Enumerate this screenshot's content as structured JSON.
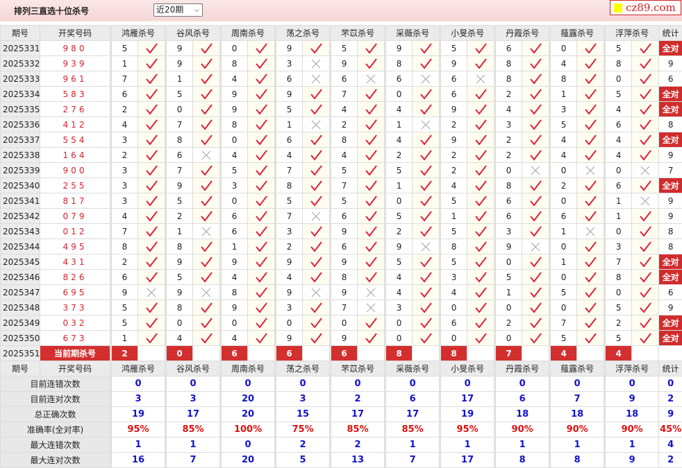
{
  "header": {
    "title": "排列三直选十位杀号",
    "period_select": "近20期",
    "logo": "cz89.com"
  },
  "columns": {
    "issue": "期号",
    "draw": "开奖号码",
    "predictors": [
      "鸿雁杀号",
      "谷风杀号",
      "周南杀号",
      "荡之杀号",
      "芣苡杀号",
      "采薇杀号",
      "小旻杀号",
      "丹霞杀号",
      "薤露杀号",
      "浮萍杀号"
    ],
    "stat": "统计"
  },
  "colors": {
    "accent": "#d42f2f",
    "check": "#e0203a",
    "cross": "#aaaaaa",
    "stat_blue": "#1212d0"
  },
  "rows": [
    {
      "issue": "2025331",
      "draw": "980",
      "nums": [
        5,
        9,
        0,
        9,
        5,
        9,
        5,
        6,
        0,
        5
      ],
      "ok": [
        1,
        1,
        1,
        1,
        1,
        1,
        1,
        1,
        1,
        1
      ],
      "stat": "全对"
    },
    {
      "issue": "2025332",
      "draw": "939",
      "nums": [
        1,
        9,
        8,
        3,
        9,
        8,
        9,
        8,
        4,
        8
      ],
      "ok": [
        1,
        1,
        1,
        0,
        1,
        1,
        1,
        1,
        1,
        1
      ],
      "stat": "9"
    },
    {
      "issue": "2025333",
      "draw": "961",
      "nums": [
        7,
        1,
        4,
        6,
        6,
        6,
        6,
        8,
        8,
        0
      ],
      "ok": [
        1,
        1,
        1,
        0,
        0,
        0,
        0,
        1,
        1,
        1
      ],
      "stat": "6"
    },
    {
      "issue": "2025334",
      "draw": "583",
      "nums": [
        6,
        5,
        9,
        9,
        7,
        0,
        6,
        2,
        1,
        5
      ],
      "ok": [
        1,
        1,
        1,
        1,
        1,
        1,
        1,
        1,
        1,
        1
      ],
      "stat": "全对"
    },
    {
      "issue": "2025335",
      "draw": "276",
      "nums": [
        2,
        0,
        9,
        5,
        4,
        4,
        9,
        4,
        3,
        4
      ],
      "ok": [
        1,
        1,
        1,
        1,
        1,
        1,
        1,
        1,
        1,
        1
      ],
      "stat": "全对"
    },
    {
      "issue": "2025336",
      "draw": "412",
      "nums": [
        4,
        7,
        8,
        1,
        2,
        1,
        2,
        3,
        5,
        6
      ],
      "ok": [
        1,
        1,
        1,
        0,
        1,
        0,
        1,
        1,
        1,
        1
      ],
      "stat": "8"
    },
    {
      "issue": "2025337",
      "draw": "554",
      "nums": [
        3,
        8,
        0,
        6,
        8,
        4,
        9,
        2,
        4,
        4
      ],
      "ok": [
        1,
        1,
        1,
        1,
        1,
        1,
        1,
        1,
        1,
        1
      ],
      "stat": "全对"
    },
    {
      "issue": "2025338",
      "draw": "164",
      "nums": [
        2,
        6,
        4,
        4,
        4,
        2,
        2,
        2,
        4,
        4
      ],
      "ok": [
        1,
        0,
        1,
        1,
        1,
        1,
        1,
        1,
        1,
        1
      ],
      "stat": "9"
    },
    {
      "issue": "2025339",
      "draw": "900",
      "nums": [
        3,
        7,
        5,
        7,
        5,
        5,
        2,
        0,
        0,
        0
      ],
      "ok": [
        1,
        1,
        1,
        1,
        1,
        1,
        1,
        0,
        0,
        0
      ],
      "stat": "7"
    },
    {
      "issue": "2025340",
      "draw": "255",
      "nums": [
        3,
        9,
        3,
        8,
        7,
        1,
        4,
        8,
        2,
        6
      ],
      "ok": [
        1,
        1,
        1,
        1,
        1,
        1,
        1,
        1,
        1,
        1
      ],
      "stat": "全对"
    },
    {
      "issue": "2025341",
      "draw": "817",
      "nums": [
        3,
        5,
        0,
        5,
        5,
        0,
        5,
        6,
        0,
        1
      ],
      "ok": [
        1,
        1,
        1,
        1,
        1,
        1,
        1,
        1,
        1,
        0
      ],
      "stat": "9"
    },
    {
      "issue": "2025342",
      "draw": "079",
      "nums": [
        4,
        2,
        6,
        7,
        6,
        5,
        1,
        6,
        6,
        1
      ],
      "ok": [
        1,
        1,
        1,
        0,
        1,
        1,
        1,
        1,
        1,
        1
      ],
      "stat": "9"
    },
    {
      "issue": "2025343",
      "draw": "012",
      "nums": [
        7,
        1,
        6,
        3,
        9,
        2,
        5,
        3,
        1,
        0
      ],
      "ok": [
        1,
        0,
        1,
        1,
        1,
        1,
        1,
        1,
        0,
        1
      ],
      "stat": "8"
    },
    {
      "issue": "2025344",
      "draw": "495",
      "nums": [
        8,
        8,
        1,
        2,
        6,
        9,
        8,
        9,
        0,
        3
      ],
      "ok": [
        1,
        1,
        1,
        1,
        1,
        0,
        1,
        0,
        1,
        1
      ],
      "stat": "8"
    },
    {
      "issue": "2025345",
      "draw": "431",
      "nums": [
        2,
        9,
        9,
        9,
        9,
        5,
        5,
        0,
        1,
        7
      ],
      "ok": [
        1,
        1,
        1,
        1,
        1,
        1,
        1,
        1,
        1,
        1
      ],
      "stat": "全对"
    },
    {
      "issue": "2025346",
      "draw": "826",
      "nums": [
        6,
        5,
        4,
        4,
        8,
        4,
        3,
        5,
        0,
        8
      ],
      "ok": [
        1,
        1,
        1,
        1,
        1,
        1,
        1,
        1,
        1,
        1
      ],
      "stat": "全对"
    },
    {
      "issue": "2025347",
      "draw": "695",
      "nums": [
        9,
        9,
        8,
        9,
        9,
        4,
        4,
        1,
        5,
        0
      ],
      "ok": [
        0,
        0,
        1,
        0,
        0,
        1,
        1,
        1,
        1,
        1
      ],
      "stat": "6"
    },
    {
      "issue": "2025348",
      "draw": "373",
      "nums": [
        5,
        8,
        9,
        3,
        7,
        3,
        0,
        0,
        0,
        5
      ],
      "ok": [
        1,
        1,
        1,
        1,
        0,
        1,
        1,
        1,
        1,
        1
      ],
      "stat": "9"
    },
    {
      "issue": "2025349",
      "draw": "032",
      "nums": [
        5,
        0,
        0,
        0,
        0,
        0,
        6,
        2,
        7,
        2
      ],
      "ok": [
        1,
        1,
        1,
        1,
        1,
        1,
        1,
        1,
        1,
        1
      ],
      "stat": "全对"
    },
    {
      "issue": "2025350",
      "draw": "673",
      "nums": [
        1,
        4,
        4,
        9,
        9,
        0,
        0,
        0,
        5,
        5
      ],
      "ok": [
        1,
        1,
        1,
        1,
        1,
        1,
        1,
        1,
        1,
        1
      ],
      "stat": "全对"
    }
  ],
  "current": {
    "issue": "2025351",
    "label": "当前期杀号",
    "nums": [
      2,
      0,
      6,
      6,
      6,
      8,
      8,
      7,
      4,
      4
    ]
  },
  "stats": [
    {
      "label": "目前连错次数",
      "values": [
        "0",
        "0",
        "0",
        "0",
        "0",
        "0",
        "0",
        "0",
        "0",
        "0",
        "0"
      ]
    },
    {
      "label": "目前连对次数",
      "values": [
        "3",
        "3",
        "20",
        "3",
        "2",
        "6",
        "17",
        "6",
        "7",
        "9",
        "2"
      ]
    },
    {
      "label": "总正确次数",
      "values": [
        "19",
        "17",
        "20",
        "15",
        "17",
        "17",
        "19",
        "18",
        "18",
        "18",
        "9"
      ]
    },
    {
      "label": "准确率(全对率)",
      "values": [
        "95%",
        "85%",
        "100%",
        "75%",
        "85%",
        "85%",
        "95%",
        "90%",
        "90%",
        "90%",
        "45%"
      ],
      "highlight": true
    },
    {
      "label": "最大连错次数",
      "values": [
        "1",
        "1",
        "0",
        "2",
        "2",
        "1",
        "1",
        "1",
        "1",
        "1",
        "4"
      ]
    },
    {
      "label": "最大连对次数",
      "values": [
        "16",
        "7",
        "20",
        "5",
        "13",
        "7",
        "17",
        "8",
        "8",
        "9",
        "2"
      ]
    }
  ]
}
